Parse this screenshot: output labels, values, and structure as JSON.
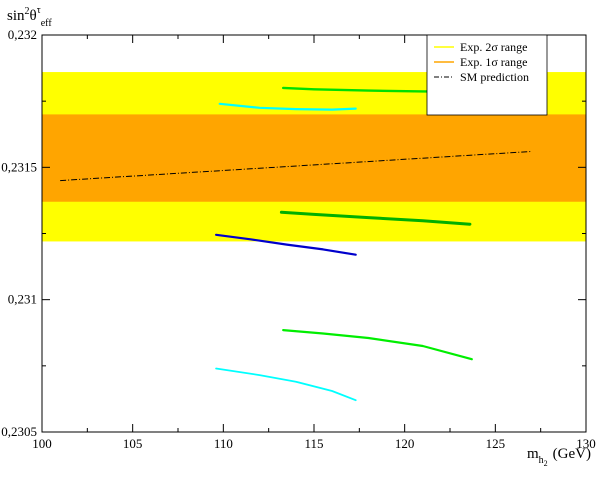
{
  "chart_data": {
    "type": "line",
    "title": "",
    "xlabel": {
      "main": "m",
      "sub": "h",
      "subsub": "2",
      "unit": "(GeV)"
    },
    "ylabel": {
      "main": "sin",
      "sup": "2",
      "theta": "θ",
      "thetasup": "τ",
      "sub": "eff"
    },
    "xlim": [
      100,
      130
    ],
    "ylim": [
      0.2305,
      0.232
    ],
    "xticks": [
      {
        "value": 100,
        "label": "100"
      },
      {
        "value": 105,
        "label": "105"
      },
      {
        "value": 110,
        "label": "110"
      },
      {
        "value": 115,
        "label": "115"
      },
      {
        "value": 120,
        "label": "120"
      },
      {
        "value": 125,
        "label": "125"
      },
      {
        "value": 130,
        "label": "130"
      }
    ],
    "yticks": [
      {
        "value": 0.2305,
        "label": "0,2305"
      },
      {
        "value": 0.231,
        "label": "0,231"
      },
      {
        "value": 0.2315,
        "label": "0,2315"
      },
      {
        "value": 0.232,
        "label": "0,232"
      }
    ],
    "bands": [
      {
        "name": "Exp. 2σ range",
        "ymin": 0.23122,
        "ymax": 0.23186,
        "color": "#ffff00"
      },
      {
        "name": "Exp. 1σ range",
        "ymin": 0.23137,
        "ymax": 0.2317,
        "color": "#ffa500"
      }
    ],
    "sm_prediction": {
      "name": "SM prediction",
      "color": "#000000",
      "dash": "dash-dot",
      "x": [
        101,
        127
      ],
      "y": [
        0.23145,
        0.23156
      ]
    },
    "series": [
      {
        "color": "#00ffff",
        "width": 2.2,
        "x": [
          109.8,
          112,
          114,
          116,
          117.3
        ],
        "y": [
          0.23174,
          0.231725,
          0.23172,
          0.231718,
          0.231722
        ]
      },
      {
        "color": "#00e000",
        "width": 2.4,
        "x": [
          113.3,
          115,
          118,
          121,
          123.5
        ],
        "y": [
          0.2318,
          0.231795,
          0.23179,
          0.231787,
          0.231787
        ]
      },
      {
        "color": "#00b000",
        "width": 3.0,
        "x": [
          113.2,
          115,
          118,
          121,
          123.6
        ],
        "y": [
          0.23133,
          0.231322,
          0.23131,
          0.231298,
          0.231285
        ]
      },
      {
        "color": "#0000cc",
        "width": 2.2,
        "x": [
          109.6,
          111.5,
          113.5,
          115.5,
          117.3
        ],
        "y": [
          0.231245,
          0.231228,
          0.231208,
          0.23119,
          0.23117
        ]
      },
      {
        "color": "#00ee00",
        "width": 2.2,
        "x": [
          113.3,
          115.5,
          118,
          121,
          123.7
        ],
        "y": [
          0.230885,
          0.230872,
          0.230855,
          0.230825,
          0.230775
        ]
      },
      {
        "color": "#00ffff",
        "width": 1.8,
        "x": [
          109.6,
          112,
          114,
          116,
          117.3
        ],
        "y": [
          0.23074,
          0.230715,
          0.23069,
          0.230655,
          0.23062
        ]
      }
    ],
    "legend": {
      "placement": "top-right",
      "entries": [
        {
          "label": "Exp. 2σ range",
          "color": "#ffff00"
        },
        {
          "label": "Exp. 1σ range",
          "color": "#ffa500"
        },
        {
          "label": "SM prediction",
          "color": "#000000"
        }
      ]
    },
    "grid": false
  }
}
